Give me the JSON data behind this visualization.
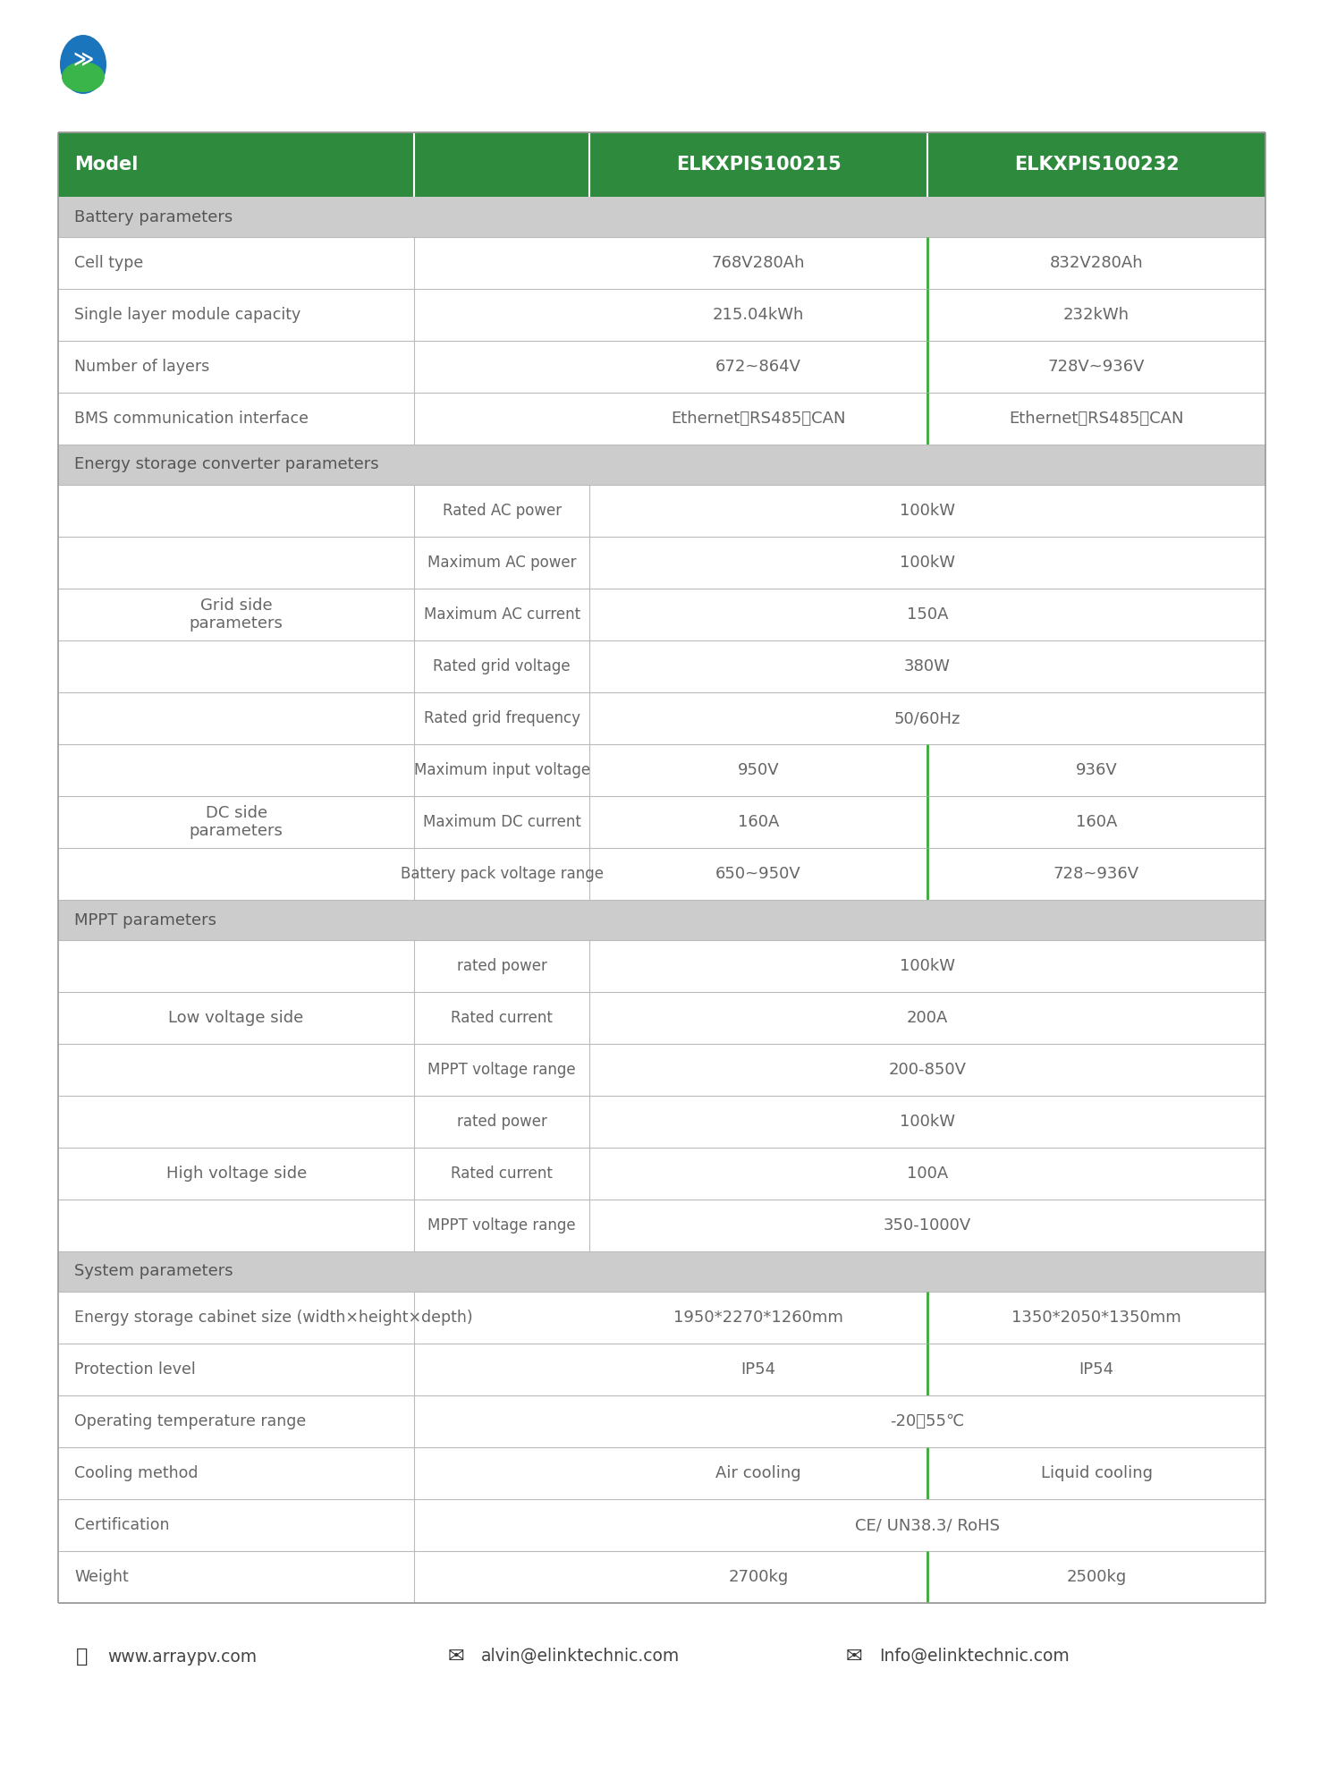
{
  "header_bg": "#2e8b3e",
  "header_text_color": "#ffffff",
  "section_bg": "#cccccc",
  "section_text_color": "#555555",
  "cell_text_color": "#666666",
  "border_color": "#bbbbbb",
  "green_divider": "#3aaa35",
  "footer_text_color": "#444444",
  "header_row": [
    "Model",
    "ELKXPIS100215",
    "ELKXPIS100232"
  ],
  "sections": [
    {
      "section_label": "Battery parameters",
      "type": "simple",
      "rows": [
        {
          "col1": "Cell type",
          "col3": "768V280Ah",
          "col4": "832V280Ah",
          "divider": true
        },
        {
          "col1": "Single layer module capacity",
          "col3": "215.04kWh",
          "col4": "232kWh",
          "divider": true
        },
        {
          "col1": "Number of layers",
          "col3": "672~864V",
          "col4": "728V~936V",
          "divider": true
        },
        {
          "col1": "BMS communication interface",
          "col3": "Ethernet、RS485、CAN",
          "col4": "Ethernet、RS485、CAN",
          "divider": true
        }
      ]
    },
    {
      "section_label": "Energy storage converter parameters",
      "type": "grouped",
      "sub_groups": [
        {
          "group_label": "Grid side\nparameters",
          "type": "span",
          "rows": [
            {
              "col2": "Rated AC power",
              "span": "100kW"
            },
            {
              "col2": "Maximum AC power",
              "span": "100kW"
            },
            {
              "col2": "Maximum AC current",
              "span": "150A"
            },
            {
              "col2": "Rated grid voltage",
              "span": "380W"
            },
            {
              "col2": "Rated grid frequency",
              "span": "50/60Hz"
            }
          ]
        },
        {
          "group_label": "DC side\nparameters",
          "type": "split",
          "rows": [
            {
              "col2": "Maximum input voltage",
              "col3": "950V",
              "col4": "936V",
              "divider": true
            },
            {
              "col2": "Maximum DC current",
              "col3": "160A",
              "col4": "160A",
              "divider": true
            },
            {
              "col2": "Battery pack voltage range",
              "col3": "650~950V",
              "col4": "728~936V",
              "divider": true
            }
          ]
        }
      ]
    },
    {
      "section_label": "MPPT parameters",
      "type": "grouped",
      "sub_groups": [
        {
          "group_label": "Low voltage side",
          "type": "span",
          "rows": [
            {
              "col2": "rated power",
              "span": "100kW"
            },
            {
              "col2": "Rated current",
              "span": "200A"
            },
            {
              "col2": "MPPT voltage range",
              "span": "200-850V"
            }
          ]
        },
        {
          "group_label": "High voltage side",
          "type": "span",
          "rows": [
            {
              "col2": "rated power",
              "span": "100kW"
            },
            {
              "col2": "Rated current",
              "span": "100A"
            },
            {
              "col2": "MPPT voltage range",
              "span": "350-1000V"
            }
          ]
        }
      ]
    },
    {
      "section_label": "System parameters",
      "type": "simple",
      "rows": [
        {
          "col1": "Energy storage cabinet size (width×height×depth)",
          "col3": "1950*2270*1260mm",
          "col4": "1350*2050*1350mm",
          "divider": true
        },
        {
          "col1": "Protection level",
          "col3": "IP54",
          "col4": "IP54",
          "divider": true
        },
        {
          "col1": "Operating temperature range",
          "span": "-20～55℃"
        },
        {
          "col1": "Cooling method",
          "col3": "Air cooling",
          "col4": "Liquid cooling",
          "divider": true
        },
        {
          "col1": "Certification",
          "span": "CE/ UN38.3/ RoHS"
        },
        {
          "col1": "Weight",
          "col3": "2700kg",
          "col4": "2500kg",
          "divider": true
        }
      ]
    }
  ],
  "footer": [
    "www.arraypv.com",
    "alvin@elinktechnic.com",
    "Info@elinktechnic.com"
  ]
}
